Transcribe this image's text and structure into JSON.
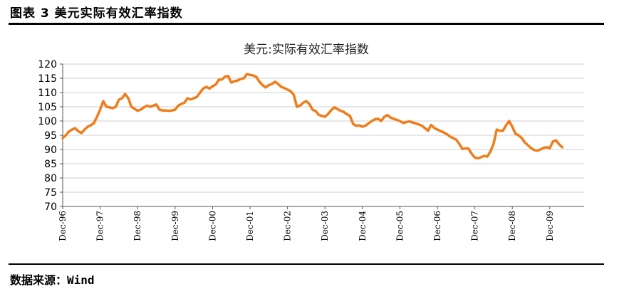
{
  "figure": {
    "title": "图表 3 美元实际有效汇率指数",
    "source_label": "数据来源：",
    "source_value": "Wind"
  },
  "chart_data": {
    "type": "line",
    "title": "美元:实际有效汇率指数",
    "xlabel": "",
    "ylabel": "",
    "ylim": [
      70,
      120
    ],
    "yticks": [
      70,
      75,
      80,
      85,
      90,
      95,
      100,
      105,
      110,
      115,
      120
    ],
    "xtick_labels": [
      "Dec-96",
      "Dec-97",
      "Dec-98",
      "Dec-99",
      "Dec-00",
      "Dec-01",
      "Dec-02",
      "Dec-03",
      "Dec-04",
      "Dec-05",
      "Dec-06",
      "Dec-07",
      "Dec-08",
      "Dec-09"
    ],
    "x_start": "1996-12",
    "grid": true,
    "legend": "none",
    "color": "#f07c1a",
    "series": [
      {
        "values": [
          94.0,
          95.0,
          96.3,
          97.0,
          97.5,
          96.4,
          95.8,
          97.0,
          98.0,
          98.5,
          99.3,
          101.5,
          104.0,
          107.0,
          105.0,
          104.8,
          104.5,
          105.0,
          107.5,
          108.0,
          109.5,
          108.0,
          105.0,
          104.3,
          103.6,
          104.0,
          104.8,
          105.4,
          105.0,
          105.4,
          105.8,
          104.0,
          103.7,
          103.7,
          103.6,
          103.7,
          104.0,
          105.4,
          106.0,
          106.5,
          108.0,
          107.6,
          108.0,
          108.5,
          110.0,
          111.4,
          112.0,
          111.4,
          112.2,
          112.8,
          114.5,
          114.6,
          115.6,
          115.8,
          113.5,
          114.0,
          114.2,
          114.8,
          115.0,
          116.5,
          116.2,
          116.0,
          115.5,
          113.8,
          112.6,
          111.8,
          112.6,
          113.0,
          113.8,
          113.0,
          112.0,
          111.6,
          111.0,
          110.5,
          109.2,
          105.0,
          105.4,
          106.4,
          107.0,
          106.0,
          104.0,
          103.5,
          102.2,
          101.8,
          101.5,
          102.5,
          103.8,
          104.8,
          104.2,
          103.6,
          103.2,
          102.4,
          101.8,
          99.0,
          98.3,
          98.5,
          98.0,
          98.4,
          99.2,
          100.0,
          100.6,
          100.8,
          100.0,
          101.5,
          102.1,
          101.2,
          100.8,
          100.4,
          100.0,
          99.3,
          99.6,
          99.9,
          99.5,
          99.2,
          98.8,
          98.4,
          97.5,
          96.6,
          98.6,
          97.6,
          97.0,
          96.5,
          96.0,
          95.4,
          94.6,
          94.0,
          93.5,
          92.0,
          90.2,
          90.4,
          90.3,
          88.5,
          87.2,
          86.9,
          87.3,
          87.8,
          87.5,
          89.3,
          92.0,
          97.0,
          96.6,
          96.6,
          98.5,
          100.0,
          98.0,
          95.5,
          95.0,
          94.0,
          92.5,
          91.5,
          90.5,
          89.8,
          89.6,
          90.0,
          90.6,
          90.8,
          90.5,
          92.8,
          93.2,
          91.8,
          90.8
        ]
      }
    ]
  }
}
